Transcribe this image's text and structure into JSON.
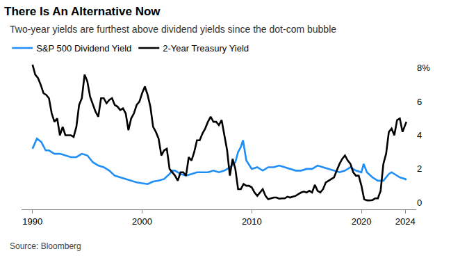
{
  "chart_data": {
    "type": "line",
    "title": "There Is An Alternative Now",
    "subtitle": "Two-year yields are furthest above dividend yields since the dot-com bubble",
    "source": "Source: Bloomberg",
    "legend": "top left",
    "grid": false,
    "xlim": [
      1989,
      2025
    ],
    "xticks": [
      1990,
      2000,
      2010,
      2020,
      2024
    ],
    "ylim": [
      -0.4,
      8.4
    ],
    "yticks": [
      0,
      2,
      4,
      6,
      {
        "value": 8,
        "label": "8%"
      }
    ],
    "series": [
      {
        "name": "S&P 500 Dividend Yield",
        "color": "#1f8ef7",
        "x": [
          1990,
          1990.4,
          1990.8,
          1991.2,
          1991.5,
          1992,
          1992.5,
          1993,
          1993.5,
          1994,
          1994.5,
          1995,
          1995.5,
          1996,
          1996.5,
          1997,
          1997.5,
          1998,
          1998.5,
          1999,
          1999.5,
          2000,
          2000.5,
          2001,
          2001.5,
          2002,
          2002.5,
          2002.75,
          2003,
          2003.5,
          2004,
          2004.5,
          2005,
          2005.5,
          2006,
          2006.5,
          2007,
          2007.5,
          2008,
          2008.5,
          2008.75,
          2009,
          2009.2,
          2009.5,
          2010,
          2010.5,
          2011,
          2011.5,
          2012,
          2012.5,
          2013,
          2013.5,
          2014,
          2014.5,
          2015,
          2015.5,
          2016,
          2016.5,
          2017,
          2017.5,
          2018,
          2018.5,
          2019,
          2019.5,
          2020,
          2020.2,
          2020.5,
          2021,
          2021.5,
          2022,
          2022.5,
          2022.75,
          2023,
          2023.5,
          2024,
          2024.1
        ],
        "values": [
          3.2,
          3.8,
          3.6,
          3.1,
          3.1,
          2.9,
          2.9,
          2.8,
          2.7,
          2.7,
          2.9,
          2.8,
          2.4,
          2.2,
          2.1,
          1.9,
          1.6,
          1.5,
          1.4,
          1.3,
          1.2,
          1.15,
          1.1,
          1.25,
          1.3,
          1.4,
          1.7,
          1.9,
          1.9,
          1.7,
          1.6,
          1.7,
          1.8,
          1.8,
          1.8,
          1.9,
          1.8,
          1.9,
          2.1,
          2.4,
          3.0,
          3.3,
          3.7,
          2.5,
          2.0,
          2.1,
          1.9,
          2.1,
          2.1,
          2.2,
          2.1,
          2.0,
          1.9,
          1.9,
          2.0,
          2.0,
          2.2,
          2.1,
          2.0,
          1.9,
          1.8,
          1.9,
          2.1,
          1.9,
          1.8,
          2.3,
          1.8,
          1.5,
          1.3,
          1.3,
          1.7,
          1.8,
          1.7,
          1.5,
          1.4,
          1.35
        ]
      },
      {
        "name": "2-Year Treasury Yield",
        "color": "#000000",
        "x": [
          1990,
          1990.25,
          1990.5,
          1990.75,
          1991,
          1991.25,
          1991.5,
          1991.75,
          1992,
          1992.25,
          1992.5,
          1992.75,
          1993,
          1993.25,
          1993.5,
          1993.75,
          1994,
          1994.25,
          1994.5,
          1994.75,
          1995,
          1995.25,
          1995.5,
          1995.75,
          1996,
          1996.25,
          1996.5,
          1996.75,
          1997,
          1997.25,
          1997.5,
          1997.75,
          1998,
          1998.25,
          1998.5,
          1998.75,
          1999,
          1999.25,
          1999.5,
          1999.75,
          2000,
          2000.25,
          2000.5,
          2000.75,
          2001,
          2001.25,
          2001.5,
          2001.75,
          2002,
          2002.25,
          2002.5,
          2002.75,
          2003,
          2003.25,
          2003.5,
          2003.75,
          2004,
          2004.25,
          2004.5,
          2004.75,
          2005,
          2005.25,
          2005.5,
          2005.75,
          2006,
          2006.25,
          2006.5,
          2006.75,
          2007,
          2007.25,
          2007.5,
          2007.75,
          2008,
          2008.25,
          2008.5,
          2008.75,
          2009,
          2009.25,
          2009.5,
          2009.75,
          2010,
          2010.25,
          2010.5,
          2010.75,
          2011,
          2011.25,
          2011.5,
          2011.75,
          2012,
          2012.25,
          2012.5,
          2012.75,
          2013,
          2013.25,
          2013.5,
          2013.75,
          2014,
          2014.25,
          2014.5,
          2014.75,
          2015,
          2015.25,
          2015.5,
          2015.75,
          2016,
          2016.25,
          2016.5,
          2016.75,
          2017,
          2017.25,
          2017.5,
          2017.75,
          2018,
          2018.25,
          2018.5,
          2018.75,
          2019,
          2019.25,
          2019.5,
          2019.75,
          2020,
          2020.25,
          2020.5,
          2020.75,
          2021,
          2021.25,
          2021.5,
          2021.75,
          2022,
          2022.25,
          2022.5,
          2022.75,
          2023,
          2023.25,
          2023.5,
          2023.75,
          2024,
          2024.1
        ],
        "values": [
          8.2,
          7.6,
          7.4,
          7.0,
          6.5,
          6.4,
          6.2,
          5.3,
          4.8,
          5.0,
          4.0,
          4.5,
          4.0,
          4.0,
          4.0,
          3.9,
          4.5,
          5.8,
          6.2,
          7.6,
          7.2,
          6.3,
          5.8,
          5.4,
          5.1,
          6.2,
          6.2,
          5.9,
          6.1,
          6.2,
          5.8,
          5.7,
          5.5,
          5.6,
          5.3,
          4.3,
          5.0,
          5.3,
          5.8,
          6.0,
          6.5,
          6.9,
          6.4,
          5.7,
          4.5,
          4.2,
          3.8,
          2.8,
          3.1,
          3.2,
          2.0,
          1.8,
          1.6,
          1.3,
          1.8,
          1.8,
          1.6,
          2.7,
          2.5,
          3.0,
          3.7,
          3.7,
          4.1,
          4.4,
          4.8,
          5.1,
          4.8,
          4.8,
          4.6,
          4.9,
          4.0,
          3.1,
          1.6,
          2.6,
          2.0,
          0.8,
          0.8,
          1.1,
          1.0,
          1.0,
          0.9,
          0.6,
          0.4,
          0.6,
          0.8,
          0.4,
          0.2,
          0.25,
          0.3,
          0.3,
          0.23,
          0.25,
          0.25,
          0.35,
          0.3,
          0.35,
          0.4,
          0.5,
          0.6,
          0.65,
          0.6,
          0.7,
          0.6,
          1.05,
          0.7,
          0.6,
          0.8,
          1.2,
          1.3,
          1.4,
          1.5,
          1.9,
          2.3,
          2.6,
          2.8,
          2.5,
          2.3,
          1.8,
          1.6,
          1.6,
          1.0,
          0.2,
          0.13,
          0.13,
          0.15,
          0.25,
          0.25,
          0.7,
          2.3,
          2.9,
          4.2,
          4.4,
          4.0,
          4.9,
          5.0,
          4.2,
          4.6,
          4.8
        ]
      }
    ]
  }
}
